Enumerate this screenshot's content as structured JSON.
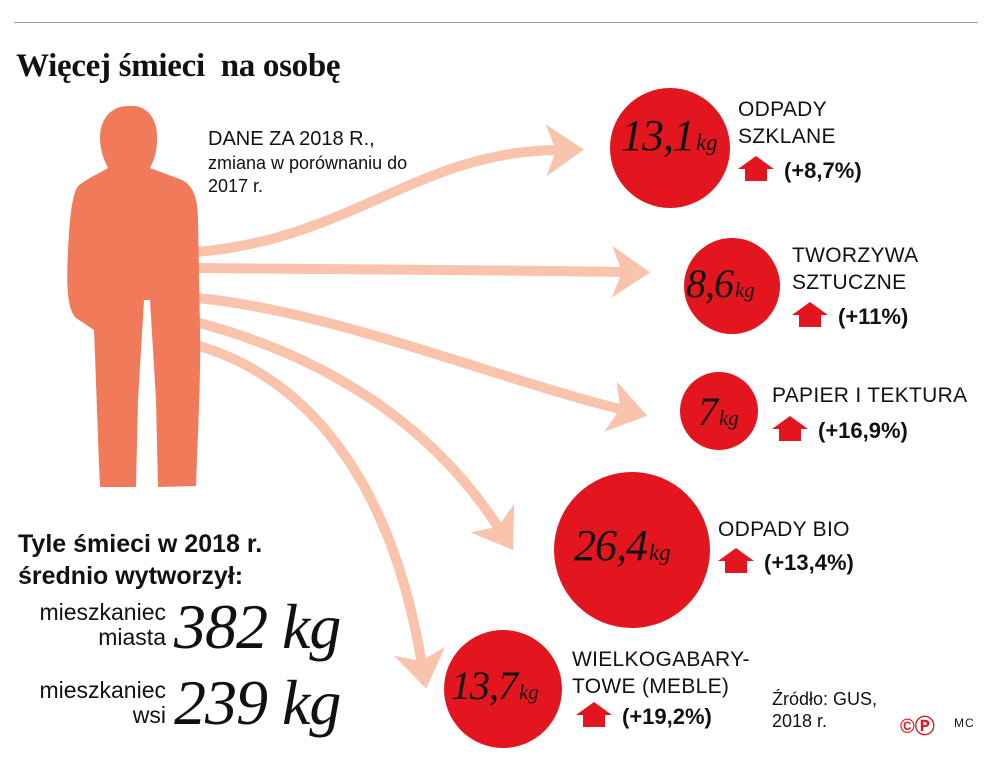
{
  "title": "Więcej śmieci  na osobę",
  "note": {
    "line1": "DANE ZA 2018 R.,",
    "line2": "zmiana w porównaniu do 2017 r."
  },
  "chart_data": {
    "type": "bubble",
    "unit": "kg",
    "items": [
      {
        "category": "ODPADY SZKLANE",
        "value": 13.1,
        "label": "13,1",
        "change": "(+8,7%)"
      },
      {
        "category": "TWORZYWA SZTUCZNE",
        "value": 8.6,
        "label": "8,6",
        "change": "(+11%)"
      },
      {
        "category": "PAPIER I TEKTURA",
        "value": 7,
        "label": "7",
        "change": "(+16,9%)"
      },
      {
        "category": "ODPADY BIO",
        "value": 26.4,
        "label": "26,4",
        "change": "(+13,4%)"
      },
      {
        "category": "WIELKOGABARY-TOWE (MEBLE)",
        "value": 13.7,
        "label": "13,7",
        "change": "(+19,2%)"
      }
    ]
  },
  "totals": {
    "heading": "Tyle śmieci w 2018 r. średnio wytworzył:",
    "city": {
      "label": "mieszkaniec miasta",
      "value": "382 kg"
    },
    "village": {
      "label": "mieszkaniec wsi",
      "value": "239 kg"
    }
  },
  "source": "Źródło: GUS, 2018 r.",
  "copyright": "©Ⓟ",
  "credit": "MC",
  "colors": {
    "circle": "#e3151f",
    "arrow": "#f9c3ac",
    "person": "#f07a5a",
    "up_arrow": "#e3151f"
  }
}
